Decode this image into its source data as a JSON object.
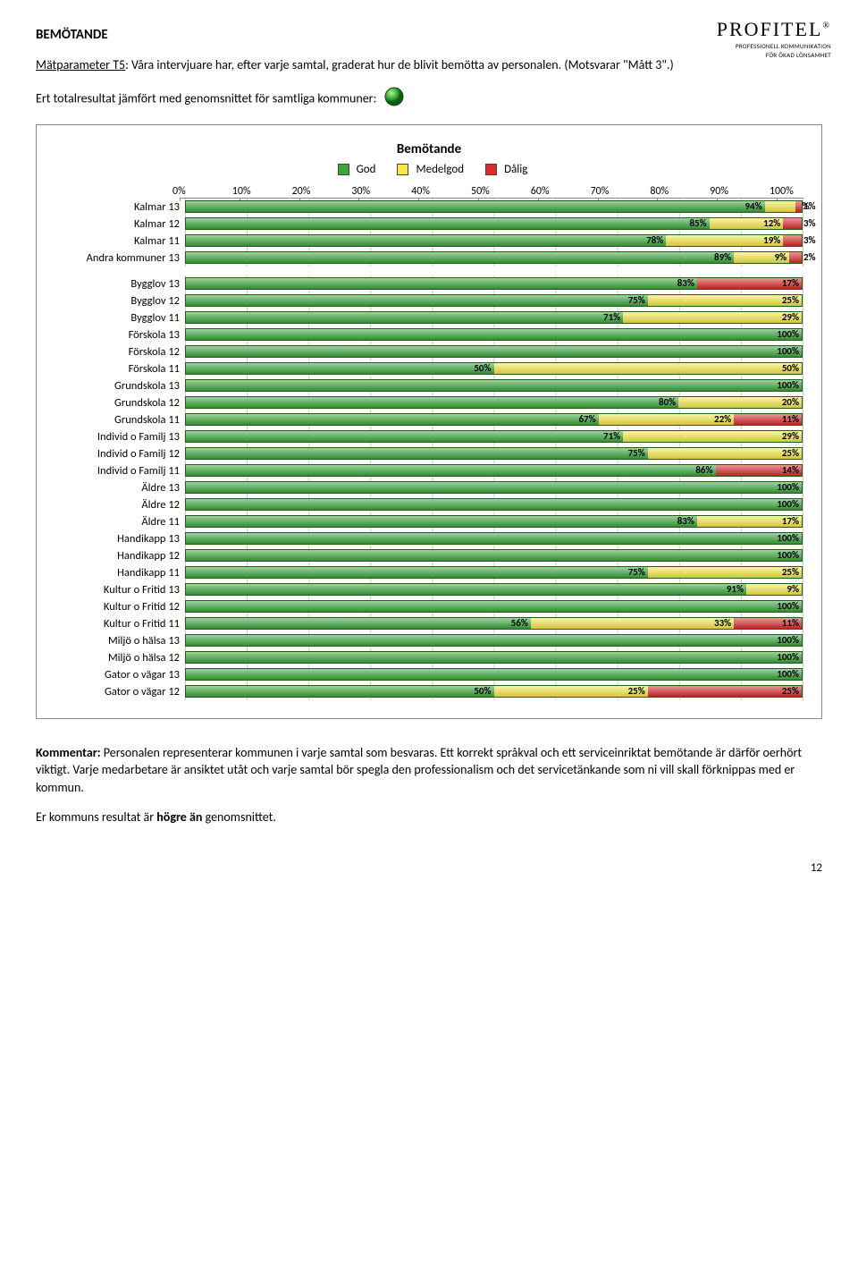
{
  "logo": {
    "name": "PROFITEL",
    "sub1": "PROFESSIONELL KOMMUNIKATION",
    "sub2": "FÖR ÖKAD LÖNSAMHET"
  },
  "heading": "BEMÖTANDE",
  "intro_html": "<u>Mätparameter T5</u>: Våra intervjuare har, efter varje samtal, graderat hur de blivit bemötta av personalen. (Motsvarar \"Mått 3\".)",
  "subtext": "Ert totalresultat jämfört med genomsnittet för samtliga kommuner:",
  "chart": {
    "title": "Bemötande",
    "legend": [
      {
        "label": "God",
        "color": "#39a63c"
      },
      {
        "label": "Medelgod",
        "color": "#f6e94a"
      },
      {
        "label": "Dålig",
        "color": "#d92b2b"
      }
    ],
    "axis": [
      "0%",
      "10%",
      "20%",
      "30%",
      "40%",
      "50%",
      "60%",
      "70%",
      "80%",
      "90%",
      "100%"
    ],
    "colors": {
      "god": "#39a63c",
      "med": "#f6e94a",
      "dal": "#d92b2b"
    },
    "groups": [
      [
        {
          "label": "Kalmar 13",
          "seg": [
            {
              "c": "god",
              "v": 94,
              "t": "94%"
            },
            {
              "c": "med",
              "v": 5,
              "t": "5%",
              "o": 1
            },
            {
              "c": "dal",
              "v": 1,
              "t": "1%",
              "o": 1
            }
          ]
        },
        {
          "label": "Kalmar 12",
          "seg": [
            {
              "c": "god",
              "v": 85,
              "t": "85%"
            },
            {
              "c": "med",
              "v": 12,
              "t": "12%"
            },
            {
              "c": "dal",
              "v": 3,
              "t": "3%",
              "o": 1
            }
          ]
        },
        {
          "label": "Kalmar 11",
          "seg": [
            {
              "c": "god",
              "v": 78,
              "t": "78%"
            },
            {
              "c": "med",
              "v": 19,
              "t": "19%"
            },
            {
              "c": "dal",
              "v": 3,
              "t": "3%",
              "o": 1
            }
          ]
        },
        {
          "label": "Andra kommuner 13",
          "seg": [
            {
              "c": "god",
              "v": 89,
              "t": "89%"
            },
            {
              "c": "med",
              "v": 9,
              "t": "9%"
            },
            {
              "c": "dal",
              "v": 2,
              "t": "2%",
              "o": 1
            }
          ]
        }
      ],
      [
        {
          "label": "Bygglov 13",
          "seg": [
            {
              "c": "god",
              "v": 83,
              "t": "83%"
            },
            {
              "c": "dal",
              "v": 17,
              "t": "17%"
            }
          ]
        },
        {
          "label": "Bygglov 12",
          "seg": [
            {
              "c": "god",
              "v": 75,
              "t": "75%"
            },
            {
              "c": "med",
              "v": 25,
              "t": "25%"
            }
          ]
        },
        {
          "label": "Bygglov 11",
          "seg": [
            {
              "c": "god",
              "v": 71,
              "t": "71%"
            },
            {
              "c": "med",
              "v": 29,
              "t": "29%"
            }
          ]
        },
        {
          "label": "Förskola 13",
          "seg": [
            {
              "c": "god",
              "v": 100,
              "t": "100%"
            }
          ]
        },
        {
          "label": "Förskola 12",
          "seg": [
            {
              "c": "god",
              "v": 100,
              "t": "100%"
            }
          ]
        },
        {
          "label": "Förskola 11",
          "seg": [
            {
              "c": "god",
              "v": 50,
              "t": "50%"
            },
            {
              "c": "med",
              "v": 50,
              "t": "50%"
            }
          ]
        },
        {
          "label": "Grundskola 13",
          "seg": [
            {
              "c": "god",
              "v": 100,
              "t": "100%"
            }
          ]
        },
        {
          "label": "Grundskola 12",
          "seg": [
            {
              "c": "god",
              "v": 80,
              "t": "80%"
            },
            {
              "c": "med",
              "v": 20,
              "t": "20%"
            }
          ]
        },
        {
          "label": "Grundskola 11",
          "seg": [
            {
              "c": "god",
              "v": 67,
              "t": "67%"
            },
            {
              "c": "med",
              "v": 22,
              "t": "22%"
            },
            {
              "c": "dal",
              "v": 11,
              "t": "11%"
            }
          ]
        },
        {
          "label": "Individ o Familj 13",
          "seg": [
            {
              "c": "god",
              "v": 71,
              "t": "71%"
            },
            {
              "c": "med",
              "v": 29,
              "t": "29%"
            }
          ]
        },
        {
          "label": "Individ o Familj 12",
          "seg": [
            {
              "c": "god",
              "v": 75,
              "t": "75%"
            },
            {
              "c": "med",
              "v": 25,
              "t": "25%"
            }
          ]
        },
        {
          "label": "Individ o Familj 11",
          "seg": [
            {
              "c": "god",
              "v": 86,
              "t": "86%"
            },
            {
              "c": "dal",
              "v": 14,
              "t": "14%"
            }
          ]
        },
        {
          "label": "Äldre 13",
          "seg": [
            {
              "c": "god",
              "v": 100,
              "t": "100%"
            }
          ]
        },
        {
          "label": "Äldre 12",
          "seg": [
            {
              "c": "god",
              "v": 100,
              "t": "100%"
            }
          ]
        },
        {
          "label": "Äldre 11",
          "seg": [
            {
              "c": "god",
              "v": 83,
              "t": "83%"
            },
            {
              "c": "med",
              "v": 17,
              "t": "17%"
            }
          ]
        },
        {
          "label": "Handikapp 13",
          "seg": [
            {
              "c": "god",
              "v": 100,
              "t": "100%"
            }
          ]
        },
        {
          "label": "Handikapp 12",
          "seg": [
            {
              "c": "god",
              "v": 100,
              "t": "100%"
            }
          ]
        },
        {
          "label": "Handikapp 11",
          "seg": [
            {
              "c": "god",
              "v": 75,
              "t": "75%"
            },
            {
              "c": "med",
              "v": 25,
              "t": "25%"
            }
          ]
        },
        {
          "label": "Kultur o Fritid 13",
          "seg": [
            {
              "c": "god",
              "v": 91,
              "t": "91%"
            },
            {
              "c": "med",
              "v": 9,
              "t": "9%"
            }
          ]
        },
        {
          "label": "Kultur o Fritid 12",
          "seg": [
            {
              "c": "god",
              "v": 100,
              "t": "100%"
            }
          ]
        },
        {
          "label": "Kultur o Fritid 11",
          "seg": [
            {
              "c": "god",
              "v": 56,
              "t": "56%"
            },
            {
              "c": "med",
              "v": 33,
              "t": "33%"
            },
            {
              "c": "dal",
              "v": 11,
              "t": "11%"
            }
          ]
        },
        {
          "label": "Miljö o hälsa 13",
          "seg": [
            {
              "c": "god",
              "v": 100,
              "t": "100%"
            }
          ]
        },
        {
          "label": "Miljö o hälsa 12",
          "seg": [
            {
              "c": "god",
              "v": 100,
              "t": "100%"
            }
          ]
        },
        {
          "label": "Gator o vägar 13",
          "seg": [
            {
              "c": "god",
              "v": 100,
              "t": "100%"
            }
          ]
        },
        {
          "label": "Gator o vägar 12",
          "seg": [
            {
              "c": "god",
              "v": 50,
              "t": "50%"
            },
            {
              "c": "med",
              "v": 25,
              "t": "25%"
            },
            {
              "c": "dal",
              "v": 25,
              "t": "25%"
            }
          ]
        }
      ]
    ]
  },
  "comment_label": "Kommentar:",
  "comment_text": " Personalen representerar kommunen i varje samtal som besvaras. Ett korrekt språkval och ett serviceinriktat bemötande är därför oerhört viktigt. Varje medarbetare är ansiktet utåt och varje samtal bör spegla den professionalism och det servicetänkande som ni vill skall förknippas med er kommun.",
  "result_prefix": "Er kommuns resultat är ",
  "result_bold": "högre än",
  "result_suffix": " genomsnittet.",
  "page": "12"
}
